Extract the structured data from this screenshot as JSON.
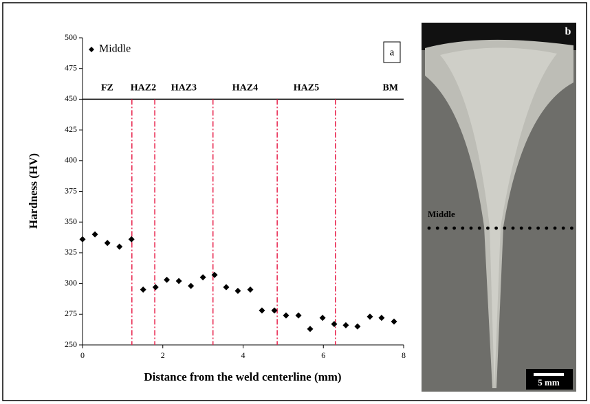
{
  "chart_data": {
    "type": "scatter",
    "xlabel": "Distance from the weld centerline (mm)",
    "ylabel": "Hardness (HV)",
    "panel_label": "a",
    "xlim": [
      0,
      8
    ],
    "xticks": [
      0,
      2,
      4,
      6,
      8
    ],
    "ylim": [
      250,
      500
    ],
    "yticks": [
      250,
      275,
      300,
      325,
      350,
      375,
      400,
      425,
      450,
      475,
      500
    ],
    "legend": "top-left",
    "series": [
      {
        "name": "Middle",
        "color": "#000000",
        "x": [
          0,
          0.31,
          0.62,
          0.92,
          1.22,
          1.51,
          1.82,
          2.1,
          2.4,
          2.7,
          3.0,
          3.29,
          3.58,
          3.87,
          4.18,
          4.47,
          4.78,
          5.07,
          5.38,
          5.67,
          5.98,
          6.27,
          6.56,
          6.85,
          7.16,
          7.45,
          7.76
        ],
        "values": [
          336,
          340,
          333,
          330,
          336,
          295,
          297,
          303,
          302,
          298,
          305,
          307,
          297,
          294,
          295,
          278,
          278,
          274,
          274,
          263,
          272,
          267,
          266,
          265,
          273,
          272,
          269
        ]
      }
    ],
    "zones": {
      "labels": [
        "FZ",
        "HAZ2",
        "HAZ3",
        "HAZ4",
        "HAZ5",
        "BM"
      ],
      "boundaries": [
        1.23,
        1.8,
        3.25,
        4.85,
        6.3
      ],
      "level": 450,
      "color": "#e8204a"
    }
  },
  "micrograph": {
    "panel_label": "b",
    "row_label": "Middle",
    "scale_bar": "5 mm"
  }
}
